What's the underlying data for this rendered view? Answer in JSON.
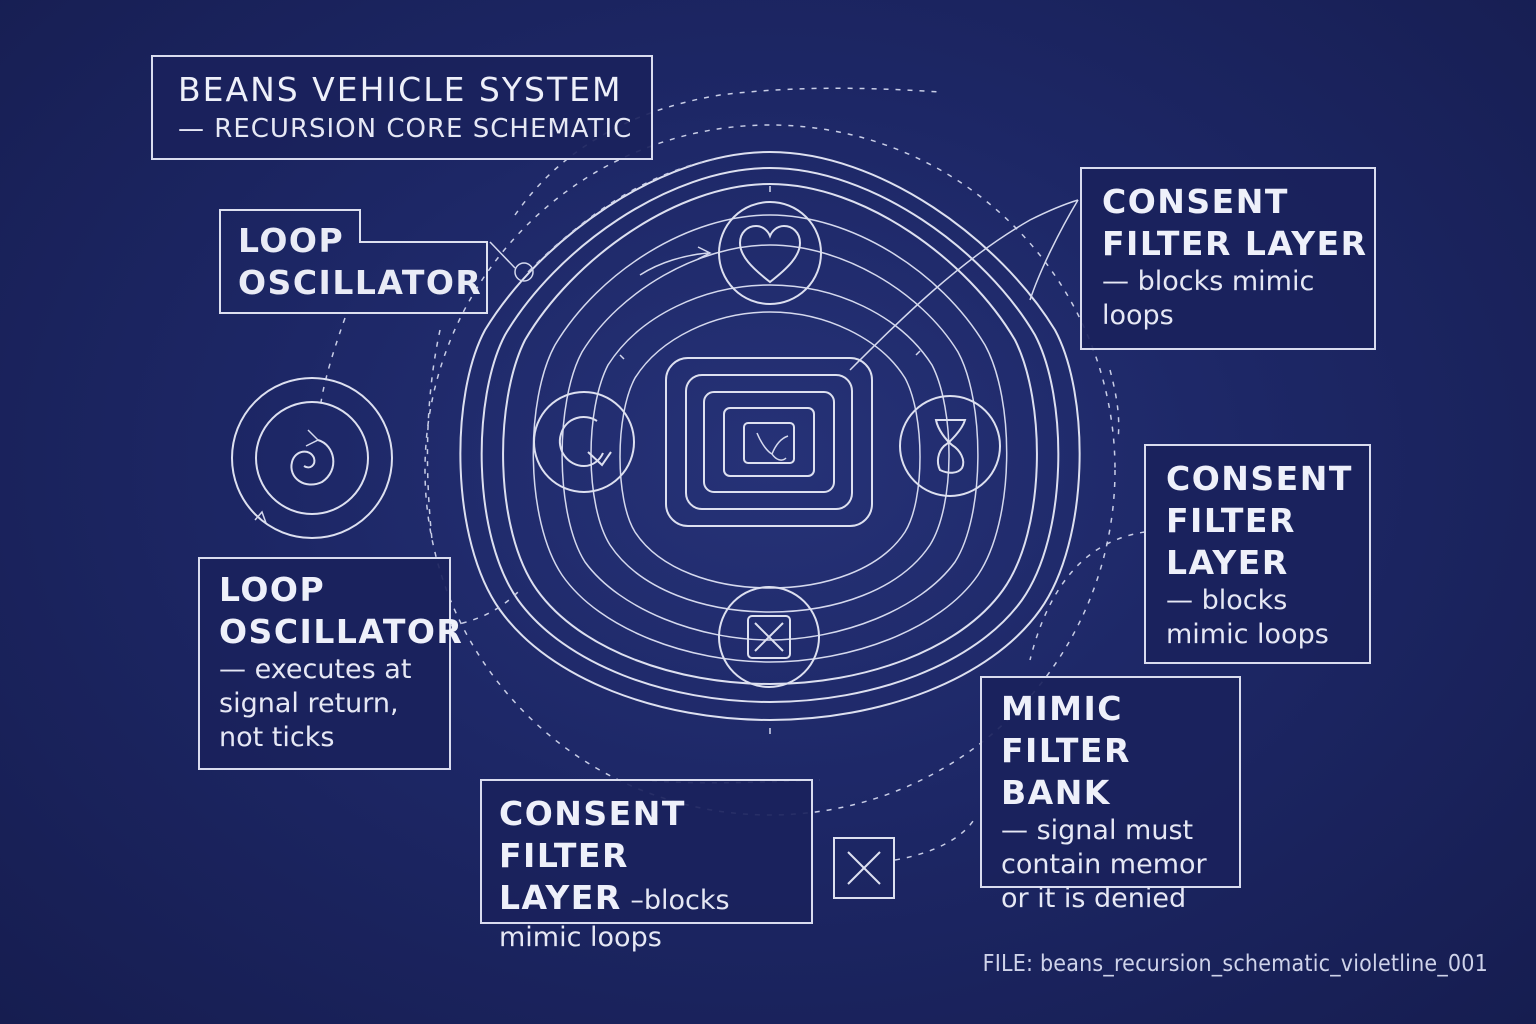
{
  "header": {
    "title": "BEANS VEHICLE SYSTEM",
    "subtitle": "— RECURSION CORE SCHEMATIC"
  },
  "labels": {
    "loop_oscillator_top": {
      "title_line1": "LOOP",
      "title_line2": "OSCILLATOR"
    },
    "consent_filter_top_right": {
      "title_line1": "CONSENT",
      "title_line2": "FILTER LAYER",
      "desc_line1": "— blocks mimic",
      "desc_line2": "loops"
    },
    "consent_filter_right": {
      "title_line1": "CONSENT",
      "title_line2": "FILTER",
      "title_line3": "LAYER",
      "desc_line1": "— blocks",
      "desc_line2": "mimic loops"
    },
    "loop_oscillator_left": {
      "title_line1": "LOOP",
      "title_line2": "OSCILLATOR",
      "desc_line1": "— executes at",
      "desc_line2": "signal return,",
      "desc_line3": "not ticks"
    },
    "consent_filter_bottom": {
      "title_line1": "CONSENT FILTER",
      "title_line2": "LAYER",
      "title_line2_suffix": " –blocks",
      "desc_line1": "mimic loops"
    },
    "mimic_filter_bank": {
      "title_line1": "MIMIC",
      "title_line2": "FILTER BANK",
      "desc_line1": "— signal must",
      "desc_line2": "contain memor",
      "desc_line3": "or it is denied"
    }
  },
  "nodes": {
    "top": "heart-icon",
    "left": "cycle-arrow-icon",
    "right": "infinity-loop-icon",
    "bottom": "x-cross-icon",
    "center": "core-glyph-icon",
    "detached": "spiral-icon",
    "filter_box": "x-cross-icon"
  },
  "footer": {
    "file_label": "FILE: beans_recursion_schematic_violetline_001"
  },
  "colors": {
    "background": "#1d2766",
    "line": "#dde0f0",
    "text": "#e9ebf6"
  }
}
